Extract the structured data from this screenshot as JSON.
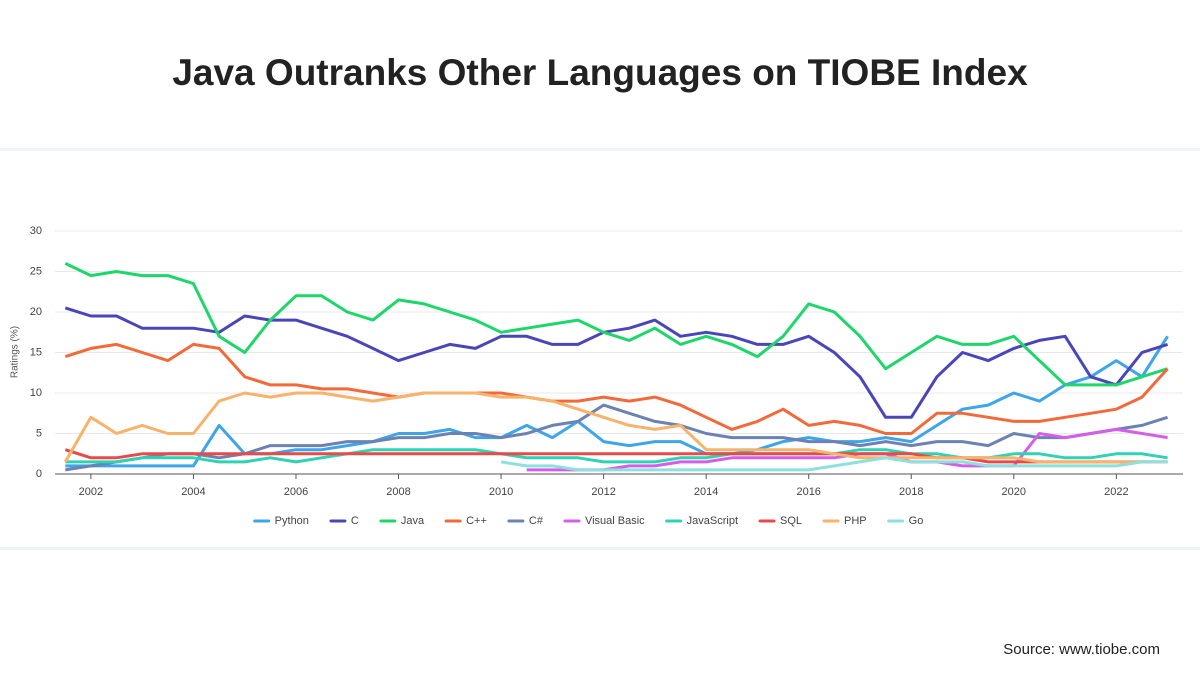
{
  "header": {
    "title": "Java Outranks Other Languages on TIOBE Index"
  },
  "source": "Source: www.tiobe.com",
  "chart_data": {
    "type": "line",
    "y_label": "Ratings (%)",
    "x": [
      2001.5,
      2002,
      2002.5,
      2003,
      2003.5,
      2004,
      2004.5,
      2005,
      2005.5,
      2006,
      2006.5,
      2007,
      2007.5,
      2008,
      2008.5,
      2009,
      2009.5,
      2010,
      2010.5,
      2011,
      2011.5,
      2012,
      2012.5,
      2013,
      2013.5,
      2014,
      2014.5,
      2015,
      2015.5,
      2016,
      2016.5,
      2017,
      2017.5,
      2018,
      2018.5,
      2019,
      2019.5,
      2020,
      2020.5,
      2021,
      2021.5,
      2022,
      2022.5,
      2023
    ],
    "xlim": [
      2001.3,
      2023.3
    ],
    "xticks": [
      2002,
      2004,
      2006,
      2008,
      2010,
      2012,
      2014,
      2016,
      2018,
      2020,
      2022
    ],
    "ylim": [
      0,
      30
    ],
    "yticks": [
      0,
      5,
      10,
      15,
      20,
      25,
      30
    ],
    "grid": true,
    "series": [
      {
        "name": "Python",
        "color": "#3da5e8",
        "values": [
          1,
          1,
          1,
          1,
          1,
          1,
          6,
          2.5,
          2.5,
          3,
          3,
          3.5,
          4,
          5,
          5,
          5.5,
          4.5,
          4.5,
          6,
          4.5,
          6.5,
          4,
          3.5,
          4,
          4,
          2.5,
          2.5,
          3,
          4,
          4.5,
          4,
          4,
          4.5,
          4,
          6,
          8,
          8.5,
          10,
          9,
          11,
          12,
          14,
          12,
          17
        ]
      },
      {
        "name": "C",
        "color": "#4a46b8",
        "values": [
          20.5,
          19.5,
          19.5,
          18,
          18,
          18,
          17.5,
          19.5,
          19,
          19,
          18,
          17,
          15.5,
          14,
          15,
          16,
          15.5,
          17,
          17,
          16,
          16,
          17.5,
          18,
          19,
          17,
          17.5,
          17,
          16,
          16,
          17,
          15,
          12,
          7,
          7,
          12,
          15,
          14,
          15.5,
          16.5,
          17,
          12,
          11,
          15,
          16
        ]
      },
      {
        "name": "Java",
        "color": "#1fd66a",
        "values": [
          26,
          24.5,
          25,
          24.5,
          24.5,
          23.5,
          17,
          15,
          19,
          22,
          22,
          20,
          19,
          21.5,
          21,
          20,
          19,
          17.5,
          18,
          18.5,
          19,
          17.5,
          16.5,
          18,
          16,
          17,
          16,
          14.5,
          17,
          21,
          20,
          17,
          13,
          15,
          17,
          16,
          16,
          17,
          14,
          11,
          11,
          11,
          12,
          13
        ]
      },
      {
        "name": "C++",
        "color": "#f26a3a",
        "values": [
          14.5,
          15.5,
          16,
          15,
          14,
          16,
          15.5,
          12,
          11,
          11,
          10.5,
          10.5,
          10,
          9.5,
          10,
          10,
          10,
          10,
          9.5,
          9,
          9,
          9.5,
          9,
          9.5,
          8.5,
          7,
          5.5,
          6.5,
          8,
          6,
          6.5,
          6,
          5,
          5,
          7.5,
          7.5,
          7,
          6.5,
          6.5,
          7,
          7.5,
          8,
          9.5,
          13
        ]
      },
      {
        "name": "C#",
        "color": "#6b82b3",
        "values": [
          0.5,
          1,
          1.5,
          2,
          2.5,
          2.5,
          2,
          2.5,
          3.5,
          3.5,
          3.5,
          4,
          4,
          4.5,
          4.5,
          5,
          5,
          4.5,
          5,
          6,
          6.5,
          8.5,
          7.5,
          6.5,
          6,
          5,
          4.5,
          4.5,
          4.5,
          4,
          4,
          3.5,
          4,
          3.5,
          4,
          4,
          3.5,
          5,
          4.5,
          4.5,
          5,
          5.5,
          6,
          7
        ]
      },
      {
        "name": "Visual Basic",
        "color": "#d35ee8",
        "values": [
          null,
          null,
          null,
          null,
          null,
          null,
          null,
          null,
          null,
          null,
          null,
          null,
          null,
          null,
          null,
          null,
          null,
          null,
          0.5,
          0.5,
          0.5,
          0.5,
          1,
          1,
          1.5,
          1.5,
          2,
          2,
          2,
          2,
          2,
          2.5,
          2.5,
          1.5,
          1.5,
          1,
          1,
          1,
          5,
          4.5,
          5,
          5.5,
          5,
          4.5
        ]
      },
      {
        "name": "JavaScript",
        "color": "#31d1b3",
        "values": [
          1.5,
          1.5,
          1.5,
          2,
          2,
          2,
          1.5,
          1.5,
          2,
          1.5,
          2,
          2.5,
          3,
          3,
          3,
          3,
          3,
          2.5,
          2,
          2,
          2,
          1.5,
          1.5,
          1.5,
          2,
          2,
          2.5,
          2.5,
          2.5,
          2.5,
          2.5,
          3,
          3,
          2.5,
          2.5,
          2,
          2,
          2.5,
          2.5,
          2,
          2,
          2.5,
          2.5,
          2
        ]
      },
      {
        "name": "SQL",
        "color": "#e84a4a",
        "values": [
          3,
          2,
          2,
          2.5,
          2.5,
          2.5,
          2.5,
          2.5,
          2.5,
          2.5,
          2.5,
          2.5,
          2.5,
          2.5,
          2.5,
          2.5,
          2.5,
          2.5,
          2.5,
          2.5,
          2.5,
          2.5,
          2.5,
          2.5,
          2.5,
          2.5,
          2.5,
          2.5,
          2.5,
          2.5,
          2.5,
          2.5,
          2.5,
          2.5,
          2,
          2,
          1.5,
          1.5,
          1.5,
          1.5,
          1.5,
          1.5,
          1.5,
          1.5
        ]
      },
      {
        "name": "PHP",
        "color": "#f7b26b",
        "values": [
          1.5,
          7,
          5,
          6,
          5,
          5,
          9,
          10,
          9.5,
          10,
          10,
          9.5,
          9,
          9.5,
          10,
          10,
          10,
          9.5,
          9.5,
          9,
          8,
          7,
          6,
          5.5,
          6,
          3,
          3,
          3,
          3,
          3,
          2.5,
          2,
          2,
          2,
          2,
          2,
          2,
          2,
          1.5,
          1.5,
          1.5,
          1.5,
          1.5,
          1.5
        ]
      },
      {
        "name": "Go",
        "color": "#8ee0dc",
        "values": [
          null,
          null,
          null,
          null,
          null,
          null,
          null,
          null,
          null,
          null,
          null,
          null,
          null,
          null,
          null,
          null,
          null,
          1.5,
          1,
          1,
          0.5,
          0.5,
          0.5,
          0.5,
          0.5,
          0.5,
          0.5,
          0.5,
          0.5,
          0.5,
          1,
          1.5,
          2,
          1.5,
          1.5,
          1.5,
          1,
          1,
          1,
          1,
          1,
          1,
          1.5,
          1.5
        ]
      }
    ]
  }
}
